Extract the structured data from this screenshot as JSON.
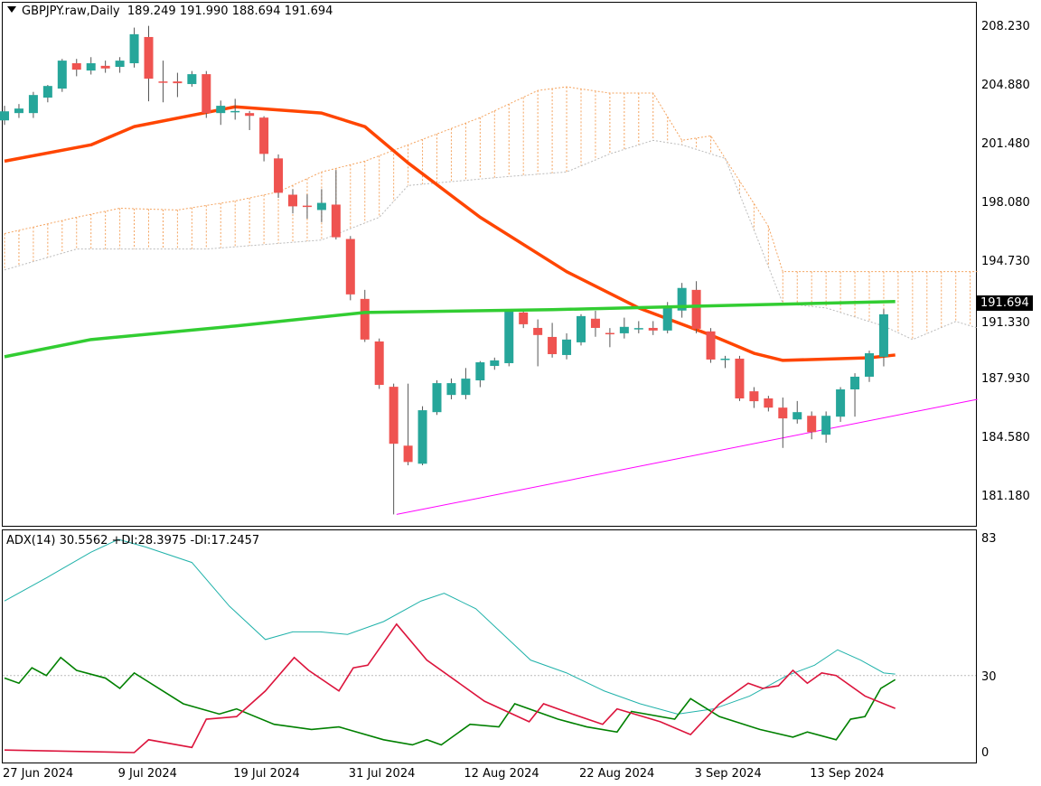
{
  "header": {
    "symbol": "GBPJPY.raw,Daily",
    "open": "189.249",
    "high": "191.990",
    "low": "188.694",
    "close": "191.694"
  },
  "price_axis": [
    "208.230",
    "204.880",
    "201.480",
    "198.080",
    "194.730",
    "191.330",
    "187.930",
    "184.580",
    "181.180"
  ],
  "current_price": "191.694",
  "adx_header": "ADX(14) 30.5562 +DI:28.3975 -DI:17.2457",
  "adx_axis": [
    "83",
    "30",
    "0"
  ],
  "date_labels": [
    {
      "bar": 0,
      "label": "27 Jun 2024"
    },
    {
      "bar": 8,
      "label": "9 Jul 2024"
    },
    {
      "bar": 16,
      "label": "19 Jul 2024"
    },
    {
      "bar": 24,
      "label": "31 Jul 2024"
    },
    {
      "bar": 32,
      "label": "12 Aug 2024"
    },
    {
      "bar": 40,
      "label": "22 Aug 2024"
    },
    {
      "bar": 48,
      "label": "3 Sep 2024"
    },
    {
      "bar": 56,
      "label": "13 Sep 2024"
    }
  ],
  "colors": {
    "bull": "#26a69a",
    "bear": "#ef5350",
    "ema": "#ff4500",
    "ma": "#32cd32",
    "cloud": "#f4a460",
    "trend": "#ff00ff",
    "adx": "#20b2aa",
    "plus_di": "#008000",
    "minus_di": "#dc143c"
  },
  "chart_data": {
    "type": "candlestick",
    "ylim": [
      181.18,
      208.23
    ],
    "adx_ylim": [
      0,
      83
    ],
    "candles_ohlc": [
      [
        202.86,
        203.7,
        202.6,
        203.38
      ],
      [
        203.28,
        203.8,
        203.0,
        203.54
      ],
      [
        203.28,
        204.5,
        203.0,
        204.32
      ],
      [
        204.17,
        204.9,
        203.9,
        204.84
      ],
      [
        204.69,
        206.4,
        204.5,
        206.3
      ],
      [
        206.15,
        206.4,
        205.4,
        205.78
      ],
      [
        205.73,
        206.5,
        205.5,
        206.15
      ],
      [
        206.0,
        206.3,
        205.6,
        205.85
      ],
      [
        205.94,
        206.5,
        205.6,
        206.3
      ],
      [
        206.15,
        208.2,
        205.9,
        207.82
      ],
      [
        207.66,
        208.3,
        203.96,
        205.26
      ],
      [
        205.1,
        206.3,
        203.9,
        205.05
      ],
      [
        205.1,
        205.6,
        204.2,
        205.0
      ],
      [
        204.95,
        205.7,
        204.8,
        205.52
      ],
      [
        205.52,
        205.7,
        203.0,
        203.28
      ],
      [
        203.28,
        204.0,
        202.6,
        203.7
      ],
      [
        203.38,
        204.1,
        202.9,
        203.4
      ],
      [
        203.28,
        203.4,
        202.3,
        203.12
      ],
      [
        203.02,
        203.1,
        200.5,
        200.93
      ],
      [
        200.67,
        200.9,
        198.4,
        198.69
      ],
      [
        198.58,
        198.9,
        197.5,
        197.91
      ],
      [
        197.95,
        198.6,
        197.2,
        197.9
      ],
      [
        197.7,
        198.9,
        197.0,
        198.11
      ],
      [
        198.01,
        200.0,
        196.0,
        196.13
      ],
      [
        196.03,
        196.2,
        192.5,
        192.84
      ],
      [
        192.58,
        193.1,
        190.1,
        190.24
      ],
      [
        190.13,
        190.3,
        187.4,
        187.63
      ],
      [
        187.52,
        187.7,
        180.17,
        184.24
      ],
      [
        184.13,
        187.7,
        183.0,
        183.19
      ],
      [
        183.09,
        186.4,
        183.0,
        186.17
      ],
      [
        186.06,
        187.9,
        185.9,
        187.73
      ],
      [
        187.05,
        188.0,
        186.8,
        187.73
      ],
      [
        187.05,
        188.6,
        186.8,
        187.99
      ],
      [
        187.89,
        189.0,
        187.5,
        188.93
      ],
      [
        188.72,
        189.2,
        188.5,
        189.04
      ],
      [
        188.88,
        192.0,
        188.7,
        191.91
      ],
      [
        191.8,
        192.0,
        190.9,
        191.12
      ],
      [
        190.91,
        191.4,
        188.7,
        190.5
      ],
      [
        190.39,
        191.2,
        189.2,
        189.4
      ],
      [
        189.35,
        190.6,
        189.1,
        190.24
      ],
      [
        190.08,
        191.7,
        189.9,
        191.59
      ],
      [
        191.44,
        191.9,
        190.4,
        190.91
      ],
      [
        190.62,
        190.9,
        189.8,
        190.6
      ],
      [
        190.6,
        191.5,
        190.3,
        190.97
      ],
      [
        190.86,
        191.3,
        190.6,
        190.9
      ],
      [
        190.91,
        191.3,
        190.5,
        190.76
      ],
      [
        190.76,
        192.4,
        190.6,
        192.06
      ],
      [
        191.91,
        193.5,
        191.5,
        193.21
      ],
      [
        193.1,
        193.6,
        190.6,
        190.86
      ],
      [
        190.71,
        190.9,
        188.9,
        189.09
      ],
      [
        189.09,
        189.3,
        188.6,
        189.14
      ],
      [
        189.14,
        189.3,
        186.7,
        186.85
      ],
      [
        187.26,
        187.5,
        186.3,
        186.69
      ],
      [
        186.85,
        187.0,
        186.1,
        186.32
      ],
      [
        186.32,
        186.9,
        184.0,
        185.7
      ],
      [
        185.64,
        186.7,
        185.4,
        186.06
      ],
      [
        185.85,
        186.1,
        184.5,
        184.91
      ],
      [
        184.76,
        186.1,
        184.3,
        185.85
      ],
      [
        185.8,
        187.5,
        185.5,
        187.37
      ],
      [
        187.37,
        188.3,
        185.8,
        188.1
      ],
      [
        188.1,
        189.6,
        187.8,
        189.45
      ],
      [
        189.249,
        191.99,
        188.694,
        191.694
      ]
    ],
    "ema": [
      [
        0,
        200.51
      ],
      [
        6,
        201.45
      ],
      [
        9,
        202.5
      ],
      [
        16,
        203.64
      ],
      [
        22,
        203.28
      ],
      [
        25,
        202.5
      ],
      [
        28,
        200.41
      ],
      [
        33,
        197.28
      ],
      [
        39,
        194.15
      ],
      [
        44,
        192.06
      ],
      [
        49,
        190.5
      ],
      [
        52,
        189.45
      ],
      [
        54,
        189.04
      ],
      [
        60,
        189.19
      ],
      [
        61.8,
        189.35
      ]
    ],
    "ma": [
      [
        0,
        189.25
      ],
      [
        6,
        190.24
      ],
      [
        16,
        191.02
      ],
      [
        25,
        191.8
      ],
      [
        38,
        191.96
      ],
      [
        51,
        192.22
      ],
      [
        61.8,
        192.43
      ]
    ],
    "span_a": [
      [
        0,
        196.34
      ],
      [
        5,
        197.28
      ],
      [
        8,
        197.8
      ],
      [
        12,
        197.7
      ],
      [
        16,
        198.22
      ],
      [
        19,
        198.74
      ],
      [
        22,
        199.89
      ],
      [
        25,
        200.51
      ],
      [
        28,
        201.45
      ],
      [
        33,
        203.02
      ],
      [
        35,
        203.8
      ],
      [
        37,
        204.58
      ],
      [
        39,
        204.79
      ],
      [
        42,
        204.43
      ],
      [
        45,
        204.43
      ],
      [
        47,
        201.71
      ],
      [
        49,
        201.97
      ],
      [
        51,
        199.37
      ],
      [
        53,
        196.76
      ],
      [
        54,
        194.15
      ],
      [
        67.5,
        194.15
      ]
    ],
    "span_b": [
      [
        0,
        194.25
      ],
      [
        5,
        195.45
      ],
      [
        14,
        195.45
      ],
      [
        22,
        195.97
      ],
      [
        26,
        197.28
      ],
      [
        28,
        199.11
      ],
      [
        35,
        199.63
      ],
      [
        39,
        199.89
      ],
      [
        42,
        200.93
      ],
      [
        45,
        201.71
      ],
      [
        47,
        201.45
      ],
      [
        50,
        200.67
      ],
      [
        52,
        196.55
      ],
      [
        54,
        192.32
      ],
      [
        57,
        192.06
      ],
      [
        61,
        191.02
      ],
      [
        63,
        190.24
      ],
      [
        66,
        191.28
      ],
      [
        67.5,
        190.91
      ]
    ],
    "trendline": [
      [
        27.2,
        180.17
      ],
      [
        67.5,
        186.8
      ]
    ],
    "adx": [
      [
        0,
        59
      ],
      [
        2.9,
        68
      ],
      [
        6,
        78
      ],
      [
        7.9,
        83
      ],
      [
        9.8,
        80
      ],
      [
        13,
        74
      ],
      [
        15.6,
        57
      ],
      [
        18.1,
        44
      ],
      [
        20,
        47
      ],
      [
        21.9,
        47
      ],
      [
        23.8,
        46
      ],
      [
        26.3,
        51
      ],
      [
        28.9,
        59
      ],
      [
        30.5,
        62
      ],
      [
        32.7,
        56
      ],
      [
        36.5,
        36
      ],
      [
        39,
        31
      ],
      [
        41.6,
        24
      ],
      [
        44.1,
        19
      ],
      [
        46.7,
        15
      ],
      [
        49.2,
        17
      ],
      [
        51.7,
        22
      ],
      [
        54.3,
        30
      ],
      [
        56.2,
        34
      ],
      [
        57.8,
        40
      ],
      [
        59.4,
        36
      ],
      [
        61,
        31
      ],
      [
        61.8,
        30.56
      ]
    ],
    "plus_di": [
      [
        0,
        29
      ],
      [
        1,
        27
      ],
      [
        1.9,
        33
      ],
      [
        2.9,
        30
      ],
      [
        3.9,
        37
      ],
      [
        5,
        32
      ],
      [
        7,
        29
      ],
      [
        8,
        25
      ],
      [
        9,
        31
      ],
      [
        12.4,
        19
      ],
      [
        14.9,
        15
      ],
      [
        16.1,
        17
      ],
      [
        18.7,
        11
      ],
      [
        21.3,
        9
      ],
      [
        23.2,
        10
      ],
      [
        26.3,
        5
      ],
      [
        28.3,
        3
      ],
      [
        29.3,
        5
      ],
      [
        30.3,
        3
      ],
      [
        32.3,
        11
      ],
      [
        34.3,
        10
      ],
      [
        35.4,
        19
      ],
      [
        38.4,
        13
      ],
      [
        40.4,
        10
      ],
      [
        42.5,
        8
      ],
      [
        43.5,
        16
      ],
      [
        46.5,
        13
      ],
      [
        47.6,
        21
      ],
      [
        49.6,
        14
      ],
      [
        52.4,
        9
      ],
      [
        54.7,
        6
      ],
      [
        55.7,
        8
      ],
      [
        57.7,
        5
      ],
      [
        58.7,
        13
      ],
      [
        59.7,
        14
      ],
      [
        60.8,
        25
      ],
      [
        61.8,
        28.4
      ]
    ],
    "minus_di": [
      [
        0,
        1
      ],
      [
        9,
        0
      ],
      [
        10,
        5
      ],
      [
        13,
        2
      ],
      [
        14,
        13
      ],
      [
        16.1,
        14
      ],
      [
        18.1,
        24
      ],
      [
        20.1,
        37
      ],
      [
        21.1,
        32
      ],
      [
        23.2,
        24
      ],
      [
        24.2,
        33
      ],
      [
        25.2,
        34
      ],
      [
        27.2,
        50
      ],
      [
        29.3,
        36
      ],
      [
        33.3,
        20
      ],
      [
        36.4,
        12
      ],
      [
        37.4,
        19
      ],
      [
        39.4,
        15
      ],
      [
        41.5,
        11
      ],
      [
        42.5,
        17
      ],
      [
        45.5,
        12
      ],
      [
        47.6,
        7
      ],
      [
        49.6,
        19
      ],
      [
        51.6,
        27
      ],
      [
        52.6,
        25
      ],
      [
        53.7,
        26
      ],
      [
        54.7,
        32
      ],
      [
        55.7,
        27
      ],
      [
        56.7,
        31
      ],
      [
        57.7,
        30
      ],
      [
        59.7,
        22
      ],
      [
        61.8,
        17.2
      ]
    ]
  }
}
